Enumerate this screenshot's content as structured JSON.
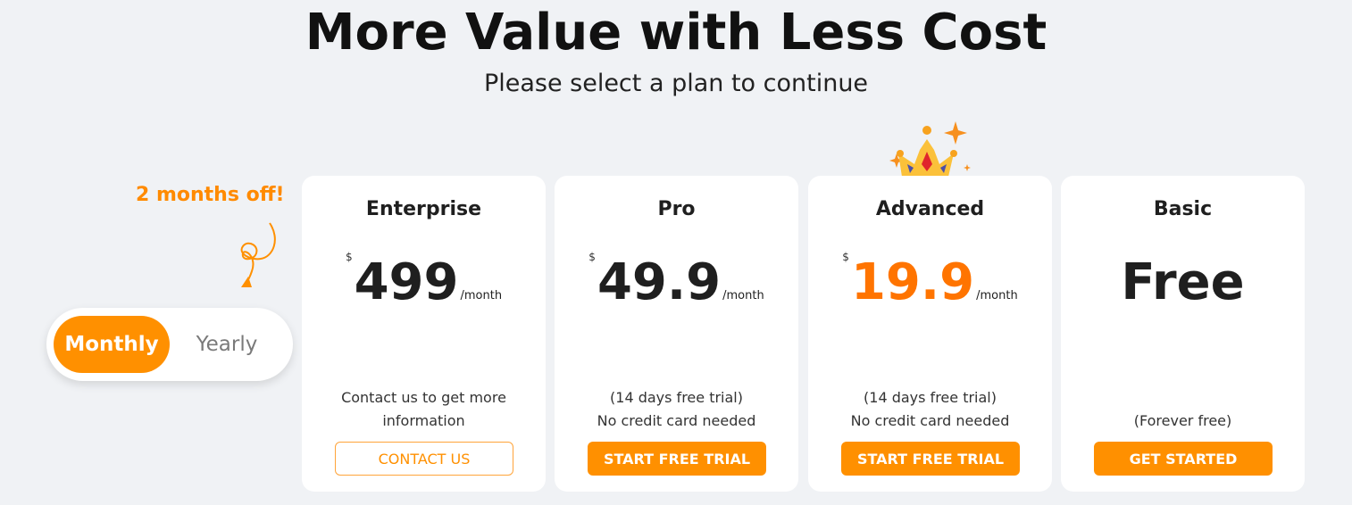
{
  "header": {
    "title": "More Value with Less Cost",
    "subtitle": "Please select a plan to continue"
  },
  "billing": {
    "promo": "2 months off!",
    "options": [
      "Monthly",
      "Yearly"
    ],
    "selected": "Monthly"
  },
  "colors": {
    "accent": "#ff9000",
    "highlight_price": "#ff7400"
  },
  "plans": [
    {
      "name": "Enterprise",
      "currency": "$",
      "price": "499",
      "period": "/month",
      "note": [
        "Contact us to get more",
        "information"
      ],
      "button": "CONTACT US"
    },
    {
      "name": "Pro",
      "currency": "$",
      "price": "49.9",
      "period": "/month",
      "note": [
        "(14 days free trial)",
        "No credit card needed"
      ],
      "button": "START FREE TRIAL"
    },
    {
      "name": "Advanced",
      "currency": "$",
      "price": "19.9",
      "period": "/month",
      "note": [
        "(14 days free trial)",
        "No credit card needed"
      ],
      "button": "START FREE TRIAL",
      "badge_icon": "crown-icon"
    },
    {
      "name": "Basic",
      "price": "Free",
      "note": [
        "",
        "(Forever free)"
      ],
      "button": "GET STARTED"
    }
  ]
}
